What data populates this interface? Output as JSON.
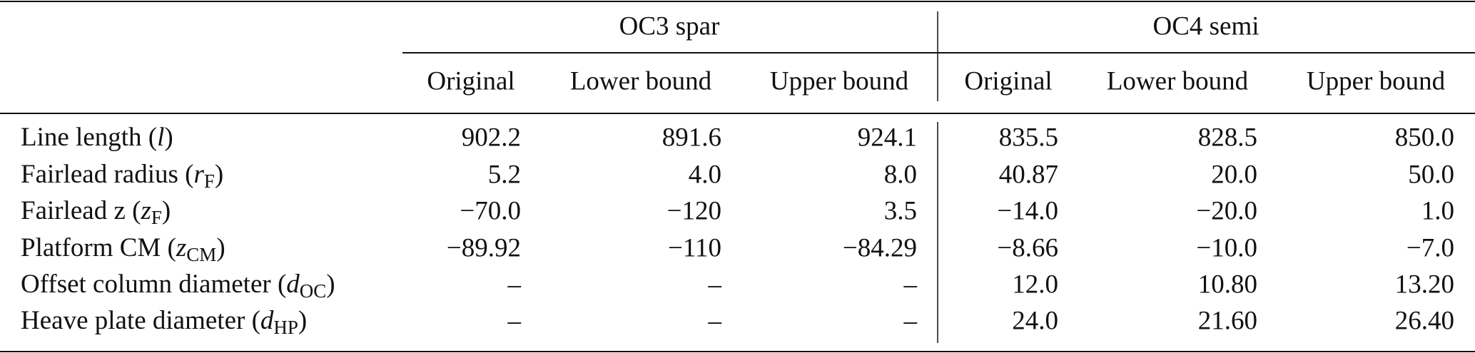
{
  "table": {
    "groups": [
      "OC3 spar",
      "OC4 semi"
    ],
    "columns": [
      "Original",
      "Lower bound",
      "Upper bound",
      "Original",
      "Lower bound",
      "Upper bound"
    ],
    "rows": [
      {
        "label": {
          "prefix": "Line length (",
          "symbol": "l",
          "suffix": ")"
        },
        "values": [
          "902.2",
          "891.6",
          "924.1",
          "835.5",
          "828.5",
          "850.0"
        ]
      },
      {
        "label": {
          "prefix": "Fairlead radius (",
          "symbol": "r",
          "subscript": "F",
          "suffix": ")"
        },
        "values": [
          "5.2",
          "4.0",
          "8.0",
          "40.87",
          "20.0",
          "50.0"
        ]
      },
      {
        "label": {
          "prefix": "Fairlead z (",
          "symbol": "z",
          "subscript": "F",
          "suffix": ")"
        },
        "values": [
          "−70.0",
          "−120",
          "3.5",
          "−14.0",
          "−20.0",
          "1.0"
        ]
      },
      {
        "label": {
          "prefix": "Platform CM (",
          "symbol": "z",
          "subscript": "CM",
          "suffix": ")"
        },
        "values": [
          "−89.92",
          "−110",
          "−84.29",
          "−8.66",
          "−10.0",
          "−7.0"
        ]
      },
      {
        "label": {
          "prefix": "Offset column diameter (",
          "symbol": "d",
          "subscript": "OC",
          "suffix": ")"
        },
        "values": [
          "–",
          "–",
          "–",
          "12.0",
          "10.80",
          "13.20"
        ]
      },
      {
        "label": {
          "prefix": "Heave plate diameter (",
          "symbol": "d",
          "subscript": "HP",
          "suffix": ")"
        },
        "values": [
          "–",
          "–",
          "–",
          "24.0",
          "21.60",
          "26.40"
        ]
      }
    ]
  }
}
